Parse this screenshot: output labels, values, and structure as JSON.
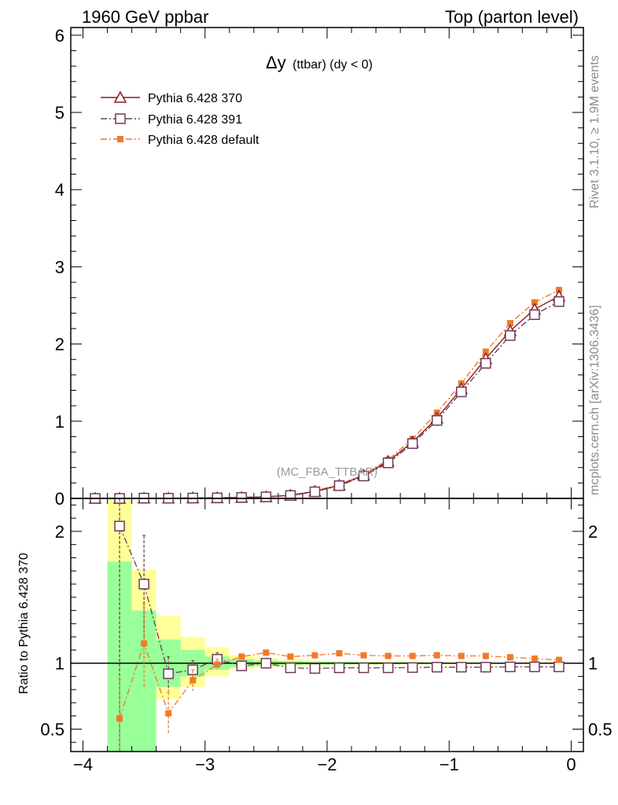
{
  "header": {
    "left": "1960 GeV ppbar",
    "right": "Top (parton level)"
  },
  "plot_title": {
    "main": "Δy",
    "sub": "(ttbar) (dy < 0)"
  },
  "watermark": "(MC_FBA_TTBAR)",
  "side_labels": {
    "rivet": "Rivet 3.1.10, ≥ 1.9M events",
    "mcplots": "mcplots.cern.ch [arXiv:1306.3436]"
  },
  "ratio_ylabel": "Ratio to Pythia 6.428 370",
  "colors": {
    "s370": "#8b1a2b",
    "s391": "#6e3b55",
    "sdef": "#f07a2a",
    "band_inner": "#99ff99",
    "band_outer": "#ffff99"
  },
  "chart_data": [
    {
      "type": "line",
      "panel": "main",
      "title": "Δy (ttbar) (dy < 0)",
      "xlim": [
        -4.1,
        0.1
      ],
      "ylim": [
        0,
        6.1
      ],
      "x_ticks": [
        -4,
        -3,
        -2,
        -1,
        0
      ],
      "y_ticks": [
        0,
        1,
        2,
        3,
        4,
        5,
        6
      ],
      "y_tick_labels": [
        "0",
        "1",
        "2",
        "3",
        "4",
        "5",
        "6"
      ],
      "legend_position": "top-left",
      "x": [
        -3.9,
        -3.7,
        -3.5,
        -3.3,
        -3.1,
        -2.9,
        -2.7,
        -2.5,
        -2.3,
        -2.1,
        -1.9,
        -1.7,
        -1.5,
        -1.3,
        -1.1,
        -0.9,
        -0.7,
        -0.5,
        -0.3,
        -0.1
      ],
      "series": [
        {
          "name": "Pythia 6.428 370",
          "marker": "triangle-open",
          "line": "solid",
          "values": [
            0.0,
            0.0,
            0.003,
            0.002,
            0.005,
            0.007,
            0.012,
            0.02,
            0.04,
            0.09,
            0.17,
            0.3,
            0.48,
            0.73,
            1.04,
            1.42,
            1.81,
            2.17,
            2.45,
            2.62
          ]
        },
        {
          "name": "Pythia 6.428 391",
          "marker": "square-open",
          "line": "dashdot",
          "values": [
            0.0,
            0.0,
            0.004,
            0.002,
            0.005,
            0.007,
            0.012,
            0.02,
            0.038,
            0.086,
            0.165,
            0.29,
            0.46,
            0.71,
            1.01,
            1.38,
            1.75,
            2.11,
            2.38,
            2.55
          ]
        },
        {
          "name": "Pythia 6.428 default",
          "marker": "square-filled",
          "line": "dashdot",
          "values": [
            0.0,
            0.0,
            0.004,
            0.002,
            0.005,
            0.007,
            0.013,
            0.022,
            0.042,
            0.096,
            0.18,
            0.31,
            0.5,
            0.77,
            1.11,
            1.49,
            1.9,
            2.27,
            2.54,
            2.7
          ]
        }
      ]
    },
    {
      "type": "line",
      "panel": "ratio",
      "ylabel": "Ratio to Pythia 6.428 370",
      "xlim": [
        -4.1,
        0.1
      ],
      "ylim": [
        0.33,
        2.25
      ],
      "y_ticks": [
        0.5,
        1,
        2
      ],
      "y_tick_labels": [
        "0.5",
        "1",
        "2"
      ],
      "x_tick_labels": [
        "−4",
        "−3",
        "−2",
        "−1",
        "0"
      ],
      "reference_line": 1,
      "x": [
        -3.7,
        -3.5,
        -3.3,
        -3.1,
        -2.9,
        -2.7,
        -2.5,
        -2.3,
        -2.1,
        -1.9,
        -1.7,
        -1.5,
        -1.3,
        -1.1,
        -0.9,
        -0.7,
        -0.5,
        -0.3,
        -0.1
      ],
      "bands": {
        "edges": [
          -3.8,
          -3.6,
          -3.4,
          -3.2,
          -3.0,
          -2.8,
          -2.6,
          -2.4,
          -2.2,
          -2.0,
          -1.8,
          -1.6,
          -1.4,
          -1.2,
          -1.0,
          -0.8,
          -0.6,
          -0.4,
          -0.2,
          0.0
        ],
        "inner_low": [
          0.2,
          0.2,
          0.82,
          0.9,
          0.95,
          0.97,
          0.98,
          0.985,
          0.99,
          0.99,
          0.992,
          0.993,
          0.995,
          0.995,
          0.996,
          0.996,
          0.997,
          0.997,
          0.997
        ],
        "inner_high": [
          1.77,
          1.4,
          1.18,
          1.1,
          1.05,
          1.03,
          1.02,
          1.015,
          1.01,
          1.01,
          1.008,
          1.007,
          1.005,
          1.005,
          1.004,
          1.004,
          1.003,
          1.003,
          1.003
        ],
        "outer_low": [
          0.2,
          0.2,
          0.73,
          0.82,
          0.9,
          0.95,
          0.965,
          0.975,
          0.98,
          0.985,
          0.988,
          0.99,
          0.991,
          0.992,
          0.993,
          0.994,
          0.995,
          0.995,
          0.995
        ],
        "outer_high": [
          2.25,
          1.71,
          1.36,
          1.2,
          1.12,
          1.06,
          1.04,
          1.03,
          1.02,
          1.015,
          1.012,
          1.01,
          1.009,
          1.008,
          1.007,
          1.006,
          1.005,
          1.005,
          1.005
        ]
      },
      "series": [
        {
          "name": "Pythia 6.428 391",
          "marker": "square-open",
          "line": "dashdot",
          "values": [
            2.04,
            1.6,
            0.92,
            0.95,
            1.03,
            0.98,
            1.0,
            0.965,
            0.96,
            0.965,
            0.965,
            0.965,
            0.967,
            0.97,
            0.97,
            0.97,
            0.972,
            0.972,
            0.972
          ],
          "err_low": [
            2.04,
            0.4,
            0.13,
            0.07,
            0.04,
            0.02,
            0.01,
            0.005,
            0.005,
            0.005,
            0.005,
            0.005,
            0.005,
            0.005,
            0.005,
            0.005,
            0.005,
            0.005,
            0.005
          ],
          "err_high": [
            0.3,
            0.37,
            0.13,
            0.07,
            0.05,
            0.02,
            0.01,
            0.005,
            0.005,
            0.005,
            0.005,
            0.005,
            0.005,
            0.005,
            0.005,
            0.005,
            0.005,
            0.005,
            0.005
          ]
        },
        {
          "name": "Pythia 6.428 default",
          "marker": "square-filled",
          "line": "dashdot",
          "values": [
            0.58,
            1.15,
            0.62,
            0.87,
            0.99,
            1.05,
            1.08,
            1.05,
            1.06,
            1.075,
            1.06,
            1.055,
            1.055,
            1.06,
            1.055,
            1.055,
            1.045,
            1.035,
            1.025
          ],
          "err_low": [
            0.58,
            0.35,
            0.16,
            0.08,
            0.04,
            0.02,
            0.01,
            0.005,
            0.005,
            0.005,
            0.005,
            0.005,
            0.005,
            0.005,
            0.005,
            0.005,
            0.005,
            0.005,
            0.005
          ],
          "err_high": [
            0.3,
            0.3,
            0.16,
            0.08,
            0.04,
            0.02,
            0.01,
            0.005,
            0.005,
            0.005,
            0.005,
            0.005,
            0.005,
            0.005,
            0.005,
            0.005,
            0.005,
            0.005,
            0.005
          ]
        }
      ]
    }
  ]
}
